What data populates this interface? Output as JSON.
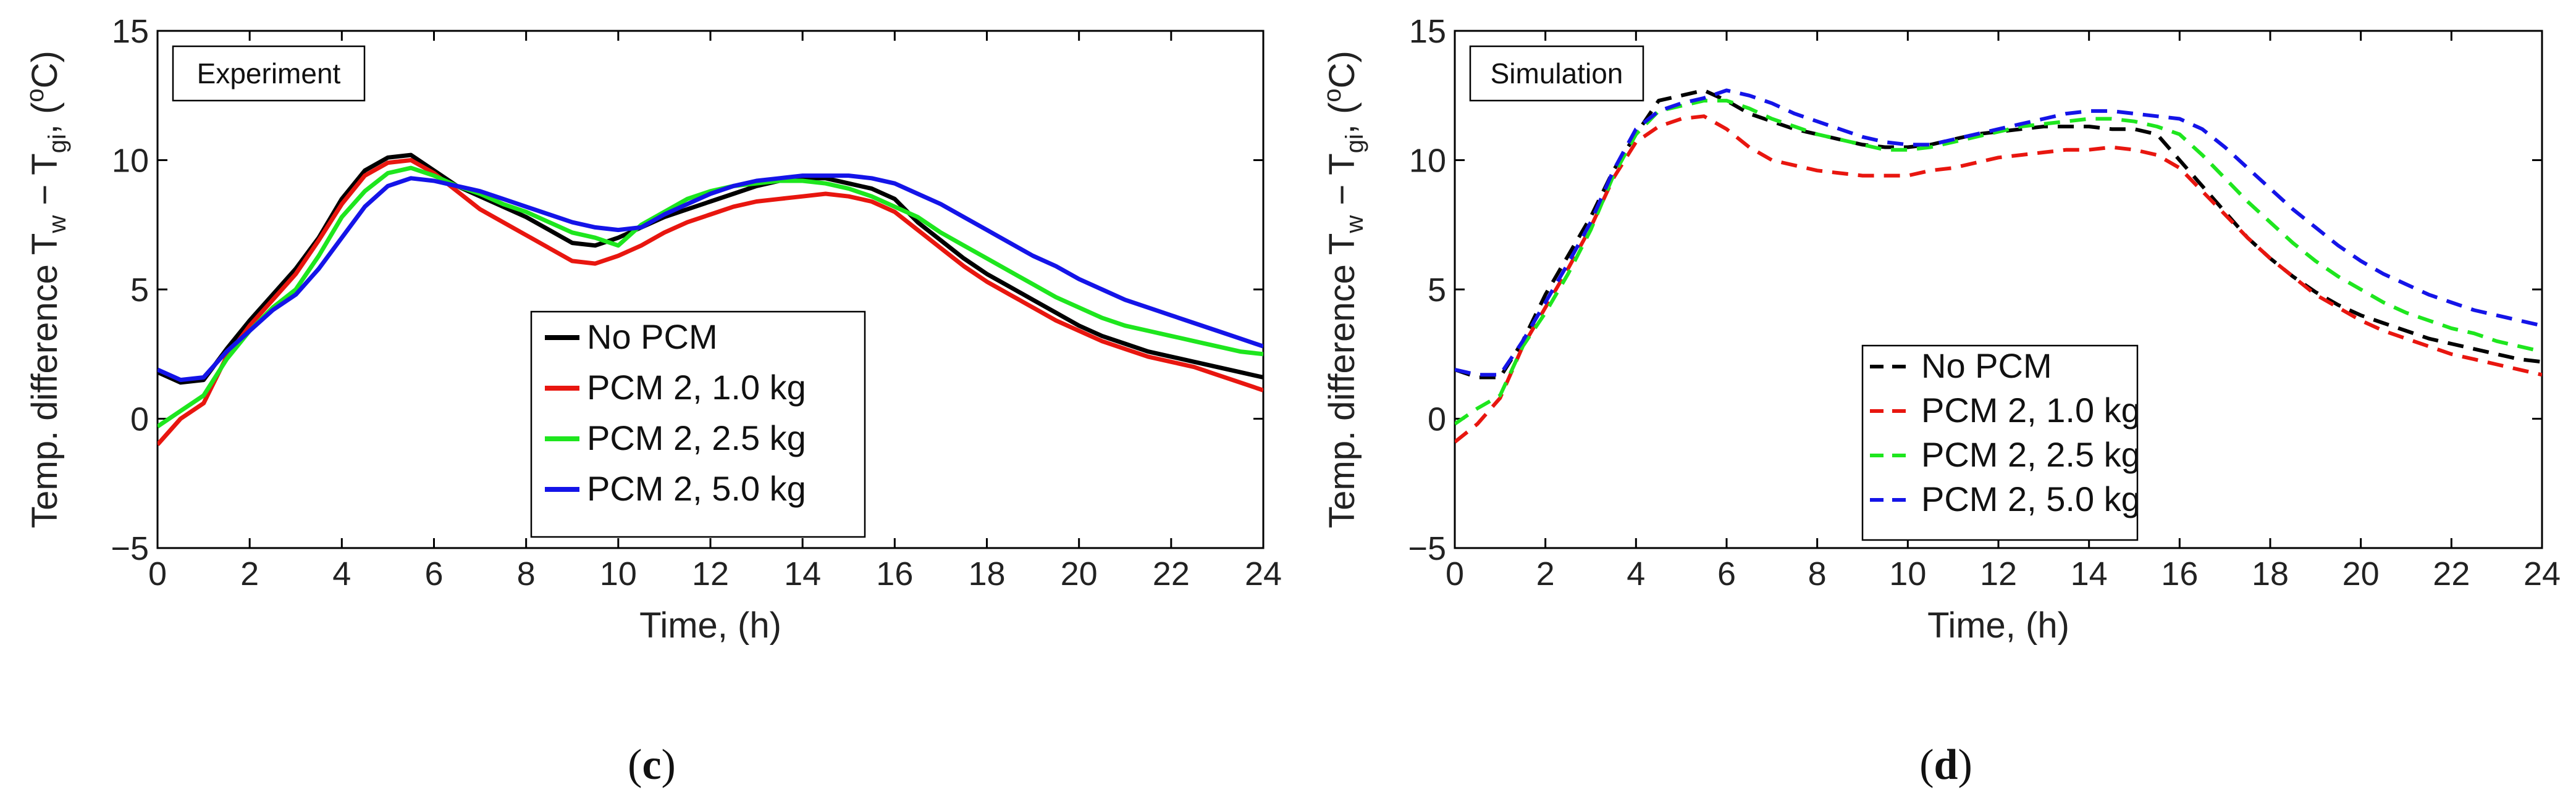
{
  "chart_data": [
    {
      "type": "line",
      "panel": "c",
      "caption": {
        "open": "(",
        "letter": "c",
        "close": ")"
      },
      "tag": "Experiment",
      "ylabel": {
        "main": "Temp. difference T",
        "sub1": "w",
        "mid": " − T",
        "sub2": "gi",
        "tail": ", (",
        "sup": "o",
        "end": "C)"
      },
      "xlabel": "Time, (h)",
      "xlim": [
        0,
        24
      ],
      "ylim": [
        -5,
        15
      ],
      "xticks": [
        0,
        2,
        4,
        6,
        8,
        10,
        12,
        14,
        16,
        18,
        20,
        22,
        24
      ],
      "yticks": [
        -5,
        0,
        5,
        10,
        15
      ],
      "line_style": "solid",
      "legend": "center",
      "x": [
        0,
        0.5,
        1,
        1.5,
        2,
        2.5,
        3,
        3.5,
        4,
        4.5,
        5,
        5.5,
        6,
        6.5,
        7,
        7.5,
        8,
        8.5,
        9,
        9.5,
        10,
        10.5,
        11,
        11.5,
        12,
        12.5,
        13,
        13.5,
        14,
        14.5,
        15,
        15.5,
        16,
        16.5,
        17,
        17.5,
        18,
        18.5,
        19,
        19.5,
        20,
        20.5,
        21,
        21.5,
        22,
        22.5,
        23,
        23.5,
        24
      ],
      "series": [
        {
          "name": "No PCM",
          "color": "#000000",
          "values": [
            1.8,
            1.4,
            1.5,
            2.7,
            3.8,
            4.8,
            5.8,
            7.0,
            8.5,
            9.6,
            10.1,
            10.2,
            9.6,
            9.0,
            8.6,
            8.2,
            7.8,
            7.3,
            6.8,
            6.7,
            7.0,
            7.4,
            7.8,
            8.1,
            8.4,
            8.7,
            9.0,
            9.2,
            9.3,
            9.3,
            9.1,
            8.9,
            8.5,
            7.6,
            6.9,
            6.2,
            5.6,
            5.1,
            4.6,
            4.1,
            3.6,
            3.2,
            2.9,
            2.6,
            2.4,
            2.2,
            2.0,
            1.8,
            1.6
          ]
        },
        {
          "name": "PCM 2, 1.0 kg",
          "color": "#e8160f",
          "values": [
            -1.0,
            0.0,
            0.6,
            2.4,
            3.6,
            4.6,
            5.6,
            6.9,
            8.3,
            9.4,
            9.9,
            10.0,
            9.5,
            8.8,
            8.1,
            7.6,
            7.1,
            6.6,
            6.1,
            6.0,
            6.3,
            6.7,
            7.2,
            7.6,
            7.9,
            8.2,
            8.4,
            8.5,
            8.6,
            8.7,
            8.6,
            8.4,
            8.0,
            7.3,
            6.6,
            5.9,
            5.3,
            4.8,
            4.3,
            3.8,
            3.4,
            3.0,
            2.7,
            2.4,
            2.2,
            2.0,
            1.7,
            1.4,
            1.1
          ]
        },
        {
          "name": "PCM 2, 2.5 kg",
          "color": "#1ee61e",
          "values": [
            -0.3,
            0.3,
            0.9,
            2.3,
            3.4,
            4.3,
            5.0,
            6.3,
            7.8,
            8.8,
            9.5,
            9.7,
            9.4,
            9.0,
            8.7,
            8.3,
            8.0,
            7.6,
            7.2,
            7.0,
            6.7,
            7.5,
            8.0,
            8.5,
            8.8,
            9.0,
            9.1,
            9.2,
            9.2,
            9.1,
            8.9,
            8.6,
            8.2,
            7.8,
            7.2,
            6.7,
            6.2,
            5.7,
            5.2,
            4.7,
            4.3,
            3.9,
            3.6,
            3.4,
            3.2,
            3.0,
            2.8,
            2.6,
            2.5
          ]
        },
        {
          "name": "PCM 2, 5.0 kg",
          "color": "#1414e8",
          "values": [
            1.9,
            1.5,
            1.6,
            2.6,
            3.4,
            4.2,
            4.8,
            5.8,
            7.0,
            8.2,
            9.0,
            9.3,
            9.2,
            9.0,
            8.8,
            8.5,
            8.2,
            7.9,
            7.6,
            7.4,
            7.3,
            7.4,
            7.9,
            8.3,
            8.7,
            9.0,
            9.2,
            9.3,
            9.4,
            9.4,
            9.4,
            9.3,
            9.1,
            8.7,
            8.3,
            7.8,
            7.3,
            6.8,
            6.3,
            5.9,
            5.4,
            5.0,
            4.6,
            4.3,
            4.0,
            3.7,
            3.4,
            3.1,
            2.8
          ]
        }
      ]
    },
    {
      "type": "line",
      "panel": "d",
      "caption": {
        "open": "(",
        "letter": "d",
        "close": ")"
      },
      "tag": "Simulation",
      "ylabel": {
        "main": "Temp. difference T",
        "sub1": "w",
        "mid": " − T",
        "sub2": "gi",
        "tail": ", (",
        "sup": "o",
        "end": "C)"
      },
      "xlabel": "Time, (h)",
      "xlim": [
        0,
        24
      ],
      "ylim": [
        -5,
        15
      ],
      "xticks": [
        0,
        2,
        4,
        6,
        8,
        10,
        12,
        14,
        16,
        18,
        20,
        22,
        24
      ],
      "yticks": [
        -5,
        0,
        5,
        10,
        15
      ],
      "line_style": "dashed",
      "legend": "center",
      "x": [
        0,
        0.5,
        1,
        1.5,
        2,
        2.5,
        3,
        3.5,
        4,
        4.5,
        5,
        5.5,
        6,
        6.5,
        7,
        7.5,
        8,
        8.5,
        9,
        9.5,
        10,
        10.5,
        11,
        11.5,
        12,
        12.5,
        13,
        13.5,
        14,
        14.5,
        15,
        15.5,
        16,
        16.5,
        17,
        17.5,
        18,
        18.5,
        19,
        19.5,
        20,
        20.5,
        21,
        21.5,
        22,
        22.5,
        23,
        23.5,
        24
      ],
      "series": [
        {
          "name": "No PCM",
          "color": "#000000",
          "values": [
            1.9,
            1.6,
            1.6,
            3.0,
            4.8,
            6.3,
            7.8,
            9.6,
            11.0,
            12.3,
            12.5,
            12.7,
            12.3,
            11.8,
            11.5,
            11.2,
            11.0,
            10.8,
            10.6,
            10.5,
            10.5,
            10.6,
            10.8,
            11.0,
            11.1,
            11.2,
            11.3,
            11.3,
            11.3,
            11.2,
            11.2,
            11.0,
            10.0,
            9.0,
            8.0,
            7.0,
            6.2,
            5.5,
            4.9,
            4.4,
            4.0,
            3.7,
            3.4,
            3.1,
            2.9,
            2.7,
            2.5,
            2.3,
            2.2
          ]
        },
        {
          "name": "PCM 2, 1.0 kg",
          "color": "#e8160f",
          "values": [
            -0.9,
            -0.2,
            0.8,
            2.8,
            4.3,
            5.8,
            7.4,
            9.3,
            10.7,
            11.3,
            11.6,
            11.7,
            11.2,
            10.5,
            10.0,
            9.8,
            9.6,
            9.5,
            9.4,
            9.4,
            9.4,
            9.6,
            9.7,
            9.9,
            10.1,
            10.2,
            10.3,
            10.4,
            10.4,
            10.5,
            10.4,
            10.2,
            9.7,
            8.8,
            7.9,
            7.0,
            6.2,
            5.5,
            4.8,
            4.3,
            3.8,
            3.4,
            3.1,
            2.8,
            2.5,
            2.3,
            2.1,
            1.9,
            1.7
          ]
        },
        {
          "name": "PCM 2, 2.5 kg",
          "color": "#1ee61e",
          "values": [
            -0.2,
            0.4,
            0.9,
            2.8,
            4.1,
            5.6,
            7.3,
            9.4,
            11.0,
            11.9,
            12.1,
            12.3,
            12.3,
            12.0,
            11.6,
            11.3,
            11.0,
            10.8,
            10.6,
            10.4,
            10.4,
            10.5,
            10.7,
            10.9,
            11.1,
            11.3,
            11.4,
            11.5,
            11.6,
            11.6,
            11.5,
            11.3,
            11.0,
            10.2,
            9.3,
            8.4,
            7.6,
            6.8,
            6.1,
            5.5,
            5.0,
            4.5,
            4.1,
            3.8,
            3.5,
            3.3,
            3.0,
            2.8,
            2.6
          ]
        },
        {
          "name": "PCM 2, 5.0 kg",
          "color": "#1414e8",
          "values": [
            1.9,
            1.7,
            1.7,
            3.0,
            4.5,
            6.0,
            7.6,
            9.6,
            11.2,
            11.9,
            12.2,
            12.4,
            12.7,
            12.5,
            12.2,
            11.8,
            11.5,
            11.2,
            10.9,
            10.7,
            10.6,
            10.6,
            10.8,
            11.0,
            11.2,
            11.4,
            11.6,
            11.8,
            11.9,
            11.9,
            11.8,
            11.7,
            11.6,
            11.2,
            10.5,
            9.7,
            8.9,
            8.1,
            7.4,
            6.7,
            6.1,
            5.6,
            5.2,
            4.8,
            4.5,
            4.2,
            4.0,
            3.8,
            3.6
          ]
        }
      ]
    }
  ]
}
